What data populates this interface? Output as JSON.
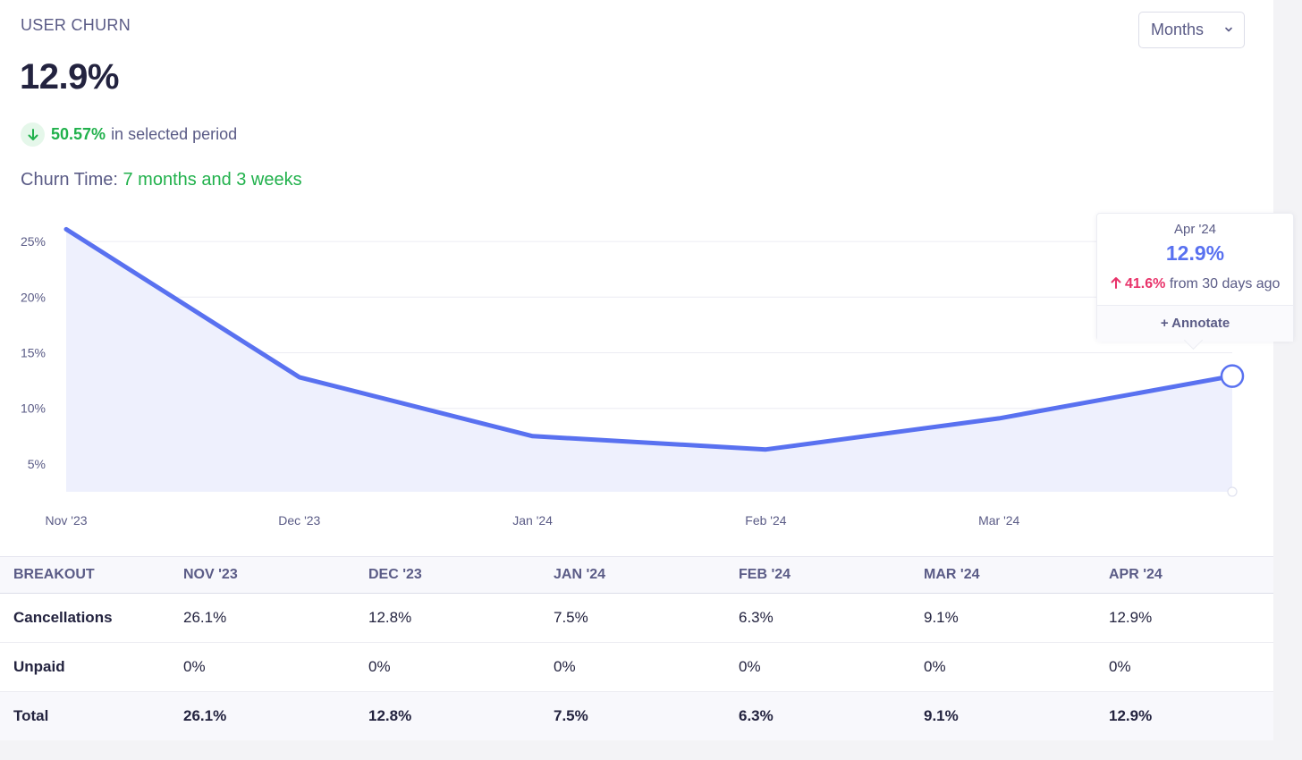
{
  "header": {
    "title": "USER CHURN",
    "big_value": "12.9%",
    "change_value": "50.57%",
    "change_text": "in selected period",
    "churn_time_label": "Churn Time:",
    "churn_time_value": "7 months and 3 weeks"
  },
  "period_select": {
    "selected": "Months"
  },
  "tooltip": {
    "date": "Apr '24",
    "value": "12.9%",
    "change_value": "41.6%",
    "change_text": "from 30 days ago",
    "annotate_label": "+ Annotate"
  },
  "chart_data": {
    "type": "area",
    "x": [
      "Nov '23",
      "Dec '23",
      "Jan '24",
      "Feb '24",
      "Mar '24",
      "Apr '24"
    ],
    "x_tick_labels": [
      "Nov '23",
      "Dec '23",
      "Jan '24",
      "Feb '24",
      "Mar '24"
    ],
    "values": [
      26.1,
      12.8,
      7.5,
      6.3,
      9.1,
      12.9
    ],
    "y_ticks": [
      5,
      10,
      15,
      20,
      25
    ],
    "y_tick_labels": [
      "5%",
      "10%",
      "15%",
      "20%",
      "25%"
    ],
    "ylim": [
      2.5,
      27.5
    ],
    "grid": true,
    "line_color": "#5971f0",
    "fill_color": "#eef0fd",
    "highlight_index": 5
  },
  "breakout_table": {
    "headers": [
      "BREAKOUT",
      "NOV '23",
      "DEC '23",
      "JAN '24",
      "FEB '24",
      "MAR '24",
      "APR '24"
    ],
    "rows": [
      {
        "label": "Cancellations",
        "values": [
          "26.1%",
          "12.8%",
          "7.5%",
          "6.3%",
          "9.1%",
          "12.9%"
        ]
      },
      {
        "label": "Unpaid",
        "values": [
          "0%",
          "0%",
          "0%",
          "0%",
          "0%",
          "0%"
        ]
      }
    ],
    "total": {
      "label": "Total",
      "values": [
        "26.1%",
        "12.8%",
        "7.5%",
        "6.3%",
        "9.1%",
        "12.9%"
      ]
    }
  },
  "colors": {
    "accent": "#5971f0",
    "positive": "#21b14c",
    "negative": "#e8336a",
    "muted_text": "#5a5b86"
  }
}
